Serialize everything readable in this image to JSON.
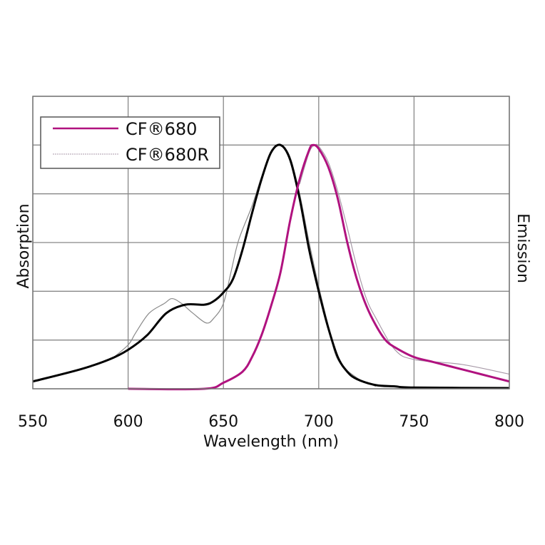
{
  "chart_data": {
    "type": "line",
    "xlabel": "Wavelength (nm)",
    "ylabel_left": "Absorption",
    "ylabel_right": "Emission",
    "xlim": [
      550,
      800
    ],
    "ylim": [
      0,
      1.2
    ],
    "xticks": [
      550,
      600,
      650,
      700,
      750,
      800
    ],
    "grid": true,
    "legend_position": "top-left",
    "legend": [
      "CF®680",
      "CF®680R"
    ],
    "series": [
      {
        "name": "CF®680",
        "kind": "absorption",
        "color": "#000000",
        "x": [
          550,
          575,
          590,
          600,
          610,
          620,
          630,
          640,
          645,
          650,
          655,
          660,
          665,
          670,
          675,
          680,
          685,
          690,
          695,
          700,
          705,
          710,
          715,
          720,
          730,
          740,
          750,
          800
        ],
        "y": [
          0.03,
          0.08,
          0.12,
          0.16,
          0.22,
          0.31,
          0.345,
          0.345,
          0.36,
          0.395,
          0.45,
          0.57,
          0.72,
          0.86,
          0.97,
          1.0,
          0.94,
          0.78,
          0.57,
          0.4,
          0.25,
          0.13,
          0.07,
          0.04,
          0.015,
          0.01,
          0.005,
          0.003
        ]
      },
      {
        "name": "CF®680R",
        "kind": "absorption",
        "color": "#8a8a8a",
        "x": [
          591,
          600,
          604,
          611,
          619,
          623,
          628,
          634,
          641,
          645,
          650,
          654,
          658,
          665,
          670,
          675,
          680,
          685,
          690,
          695,
          700,
          705,
          710,
          720,
          730
        ],
        "y": [
          0.12,
          0.18,
          0.23,
          0.31,
          0.35,
          0.37,
          0.35,
          0.31,
          0.27,
          0.29,
          0.35,
          0.48,
          0.61,
          0.75,
          0.87,
          0.97,
          1.0,
          0.95,
          0.8,
          0.6,
          0.42,
          0.26,
          0.12,
          0.045,
          0.01
        ]
      },
      {
        "name": "CF®680",
        "kind": "emission",
        "color": "#b0127f",
        "x": [
          600,
          640,
          650,
          660,
          665,
          670,
          675,
          680,
          685,
          690,
          695,
          697,
          700,
          705,
          710,
          715,
          720,
          725,
          730,
          735,
          740,
          750,
          760,
          770,
          780,
          790,
          800
        ],
        "y": [
          0.0,
          0.0,
          0.025,
          0.07,
          0.13,
          0.22,
          0.34,
          0.48,
          0.69,
          0.86,
          0.98,
          1.0,
          0.985,
          0.91,
          0.78,
          0.6,
          0.45,
          0.34,
          0.26,
          0.2,
          0.17,
          0.13,
          0.11,
          0.09,
          0.07,
          0.05,
          0.03
        ]
      },
      {
        "name": "CF®680R",
        "kind": "emission",
        "color": "#a89aa8",
        "x": [
          690,
          695,
          698,
          700,
          705,
          710,
          715,
          720,
          725,
          730,
          740,
          750,
          775,
          800
        ],
        "y": [
          0.84,
          0.97,
          1.0,
          0.995,
          0.93,
          0.81,
          0.66,
          0.5,
          0.37,
          0.29,
          0.16,
          0.12,
          0.1,
          0.06
        ]
      }
    ]
  }
}
